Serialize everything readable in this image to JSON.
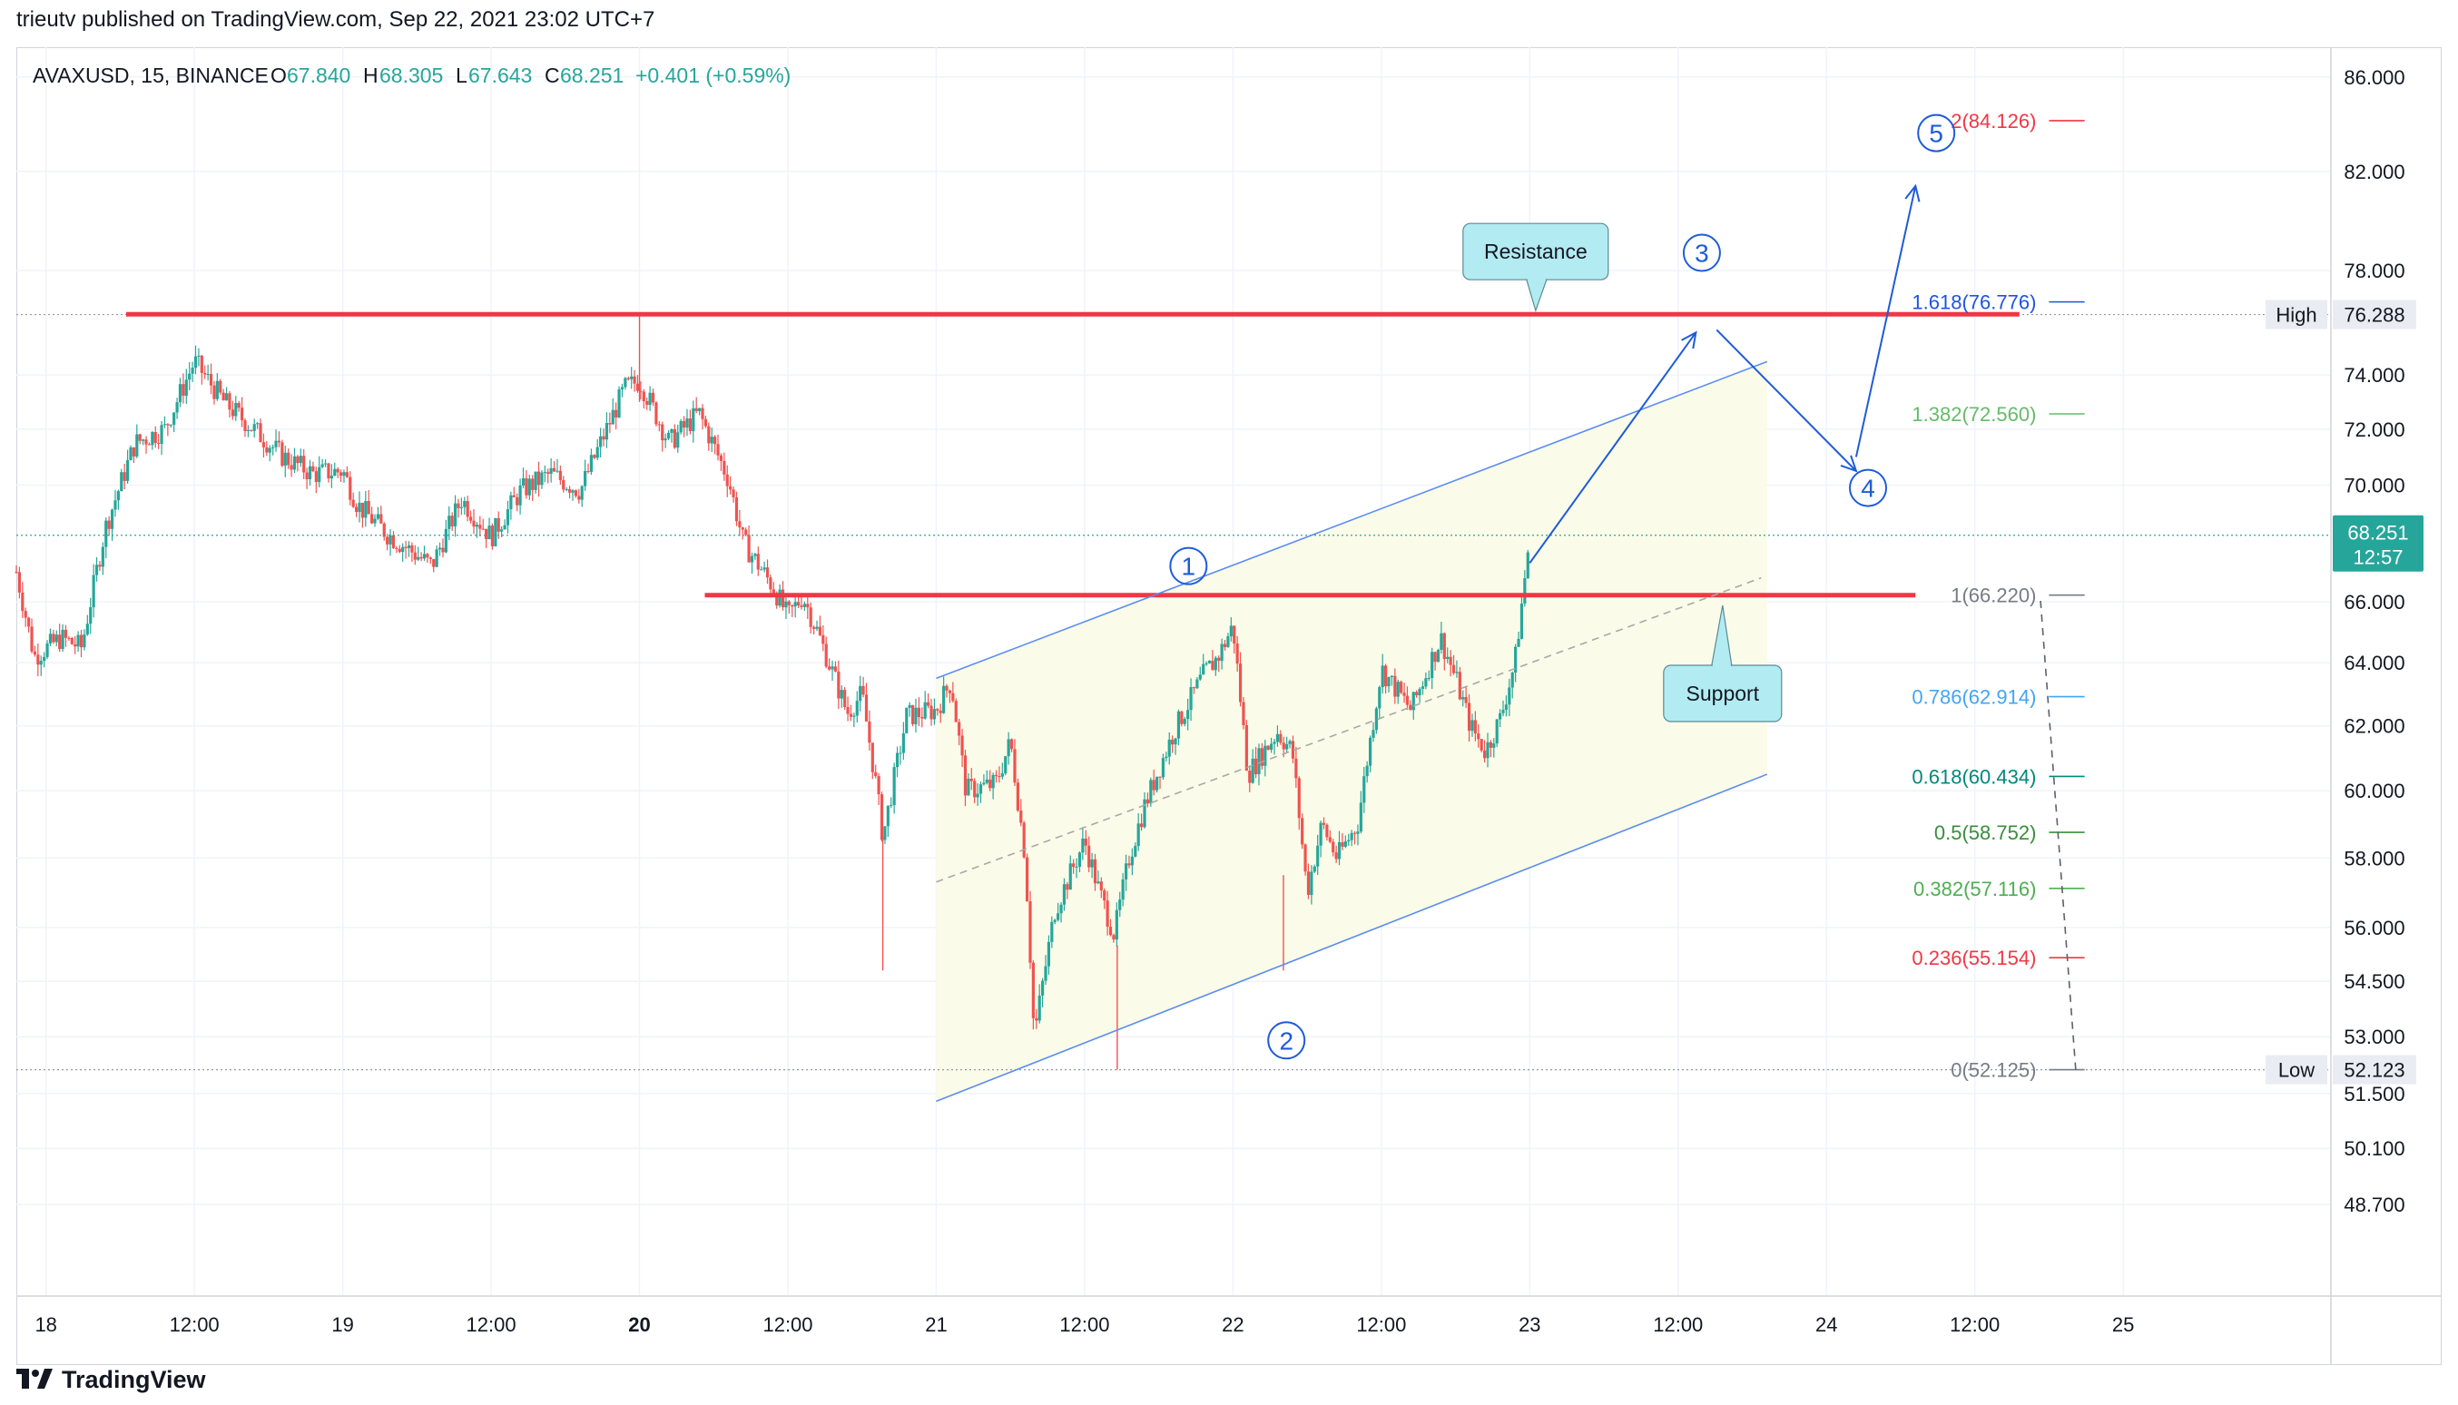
{
  "header": {
    "published_text": "trieutv published on TradingView.com, Sep 22, 2021 23:02 UTC+7"
  },
  "footer": {
    "brand": "TradingView"
  },
  "colors": {
    "up": "#26a69a",
    "down": "#ef5350",
    "red_line": "#f23645",
    "channel": "#5b8def",
    "wave": "#1e5cd8",
    "fib_236": "#f23645",
    "fib_382": "#4caf50",
    "fib_5": "#388e3c",
    "fib_618": "#00897b",
    "fib_786": "#42a5f5",
    "fib_1": "#787b86",
    "fib_1382": "#66bb6a",
    "fib_1618": "#1e53e5",
    "fib_2": "#f23645",
    "channel_fill": "#fbfbe9"
  },
  "chart_data": {
    "type": "candlestick",
    "symbol_line": {
      "symbol": "AVAXUSD, 15, BINANCE",
      "open_label": "O",
      "open": "67.840",
      "high_label": "H",
      "high": "68.305",
      "low_label": "L",
      "low": "67.643",
      "close_label": "C",
      "close": "68.251",
      "change": "+0.401 (+0.59%)"
    },
    "y_axis": {
      "scale": "log",
      "range": [
        46.5,
        87.3
      ],
      "ticks": [
        "86.000",
        "82.000",
        "78.000",
        "74.000",
        "72.000",
        "70.000",
        "66.000",
        "64.000",
        "62.000",
        "60.000",
        "58.000",
        "56.000",
        "54.500",
        "53.000",
        "51.500",
        "50.100",
        "48.700"
      ]
    },
    "x_axis": {
      "range_day": [
        17.9,
        25.7
      ],
      "ticks": [
        {
          "label": "18",
          "day": 18.0,
          "bold": false
        },
        {
          "label": "12:00",
          "day": 18.5,
          "bold": false
        },
        {
          "label": "19",
          "day": 19.0,
          "bold": false
        },
        {
          "label": "12:00",
          "day": 19.5,
          "bold": false
        },
        {
          "label": "20",
          "day": 20.0,
          "bold": true
        },
        {
          "label": "12:00",
          "day": 20.5,
          "bold": false
        },
        {
          "label": "21",
          "day": 21.0,
          "bold": false
        },
        {
          "label": "12:00",
          "day": 21.5,
          "bold": false
        },
        {
          "label": "22",
          "day": 22.0,
          "bold": false
        },
        {
          "label": "12:00",
          "day": 22.5,
          "bold": false
        },
        {
          "label": "23",
          "day": 23.0,
          "bold": false
        },
        {
          "label": "12:00",
          "day": 23.5,
          "bold": false
        },
        {
          "label": "24",
          "day": 24.0,
          "bold": false
        },
        {
          "label": "12:00",
          "day": 24.5,
          "bold": false
        },
        {
          "label": "25",
          "day": 25.0,
          "bold": false
        }
      ]
    },
    "price_path": [
      [
        17.9,
        67.0
      ],
      [
        17.96,
        64.2
      ],
      [
        18.05,
        64.8
      ],
      [
        18.12,
        64.5
      ],
      [
        18.2,
        68.5
      ],
      [
        18.3,
        71.5
      ],
      [
        18.4,
        72.0
      ],
      [
        18.5,
        74.5
      ],
      [
        18.6,
        73.0
      ],
      [
        18.7,
        72.0
      ],
      [
        18.8,
        71.0
      ],
      [
        18.9,
        70.4
      ],
      [
        19.0,
        70.5
      ],
      [
        19.05,
        69.3
      ],
      [
        19.15,
        68.3
      ],
      [
        19.3,
        67.2
      ],
      [
        19.4,
        69.5
      ],
      [
        19.5,
        68.2
      ],
      [
        19.6,
        69.8
      ],
      [
        19.7,
        70.4
      ],
      [
        19.8,
        69.8
      ],
      [
        19.95,
        73.5
      ],
      [
        20.0,
        73.8
      ],
      [
        20.1,
        71.5
      ],
      [
        20.2,
        72.6
      ],
      [
        20.3,
        70.2
      ],
      [
        20.35,
        68.0
      ],
      [
        20.45,
        66.5
      ],
      [
        20.5,
        65.5
      ],
      [
        20.55,
        66.2
      ],
      [
        20.6,
        65.0
      ],
      [
        20.7,
        62.4
      ],
      [
        20.75,
        63.0
      ],
      [
        20.8,
        60.0
      ],
      [
        20.82,
        58.6
      ],
      [
        20.9,
        62.3
      ],
      [
        21.0,
        62.5
      ],
      [
        21.05,
        63.4
      ],
      [
        21.1,
        60.0
      ],
      [
        21.2,
        60.2
      ],
      [
        21.25,
        61.5
      ],
      [
        21.3,
        58.0
      ],
      [
        21.33,
        53.0
      ],
      [
        21.4,
        56.5
      ],
      [
        21.5,
        58.5
      ],
      [
        21.55,
        57.0
      ],
      [
        21.6,
        55.8
      ],
      [
        21.65,
        58.0
      ],
      [
        21.7,
        59.5
      ],
      [
        21.8,
        61.8
      ],
      [
        21.9,
        63.6
      ],
      [
        21.95,
        64.2
      ],
      [
        22.0,
        65.2
      ],
      [
        22.05,
        60.5
      ],
      [
        22.15,
        61.8
      ],
      [
        22.2,
        61.2
      ],
      [
        22.25,
        57.0
      ],
      [
        22.3,
        59.0
      ],
      [
        22.35,
        58.0
      ],
      [
        22.42,
        59.0
      ],
      [
        22.5,
        63.8
      ],
      [
        22.6,
        62.5
      ],
      [
        22.7,
        64.8
      ],
      [
        22.75,
        63.5
      ],
      [
        22.8,
        62.0
      ],
      [
        22.85,
        61.2
      ],
      [
        22.9,
        62.2
      ],
      [
        22.95,
        64.0
      ],
      [
        22.98,
        66.5
      ],
      [
        23.0,
        68.25
      ]
    ],
    "high_low_marks": [
      {
        "label": "High",
        "value": "76.288",
        "price": 76.288
      },
      {
        "label": "Low",
        "value": "52.123",
        "price": 52.123
      }
    ],
    "current_price": {
      "value": "68.251",
      "countdown": "12:57",
      "price": 68.251
    },
    "horizontal_lines": [
      {
        "name": "resistance",
        "price": 76.3,
        "x_from": 18.27,
        "x_to": 24.65
      },
      {
        "name": "support",
        "price": 66.22,
        "x_from": 20.22,
        "x_to": 24.3
      }
    ],
    "callouts": [
      {
        "name": "resistance",
        "text": "Resistance",
        "anchor_day": 23.02,
        "anchor_price": 76.3
      },
      {
        "name": "support",
        "text": "Support",
        "anchor_day": 23.65,
        "anchor_price": 66.0
      }
    ],
    "channel": {
      "upper": [
        [
          21.0,
          63.5
        ],
        [
          23.8,
          74.5
        ]
      ],
      "middle": [
        [
          21.0,
          57.3
        ],
        [
          23.78,
          66.8
        ]
      ],
      "lower": [
        [
          21.0,
          51.3
        ],
        [
          23.8,
          60.5
        ]
      ]
    },
    "fibonacci": [
      {
        "ratio": "2",
        "value": "84.126",
        "label": "2(84.126)",
        "price": 84.126,
        "color": "#f23645"
      },
      {
        "ratio": "1.618",
        "value": "76.776",
        "label": "1.618(76.776)",
        "price": 76.776,
        "color": "#1e53e5"
      },
      {
        "ratio": "1.382",
        "value": "72.560",
        "label": "1.382(72.560)",
        "price": 72.56,
        "color": "#66bb6a"
      },
      {
        "ratio": "1",
        "value": "66.220",
        "label": "1(66.220)",
        "price": 66.22,
        "color": "#787b86"
      },
      {
        "ratio": "0.786",
        "value": "62.914",
        "label": "0.786(62.914)",
        "price": 62.914,
        "color": "#42a5f5"
      },
      {
        "ratio": "0.618",
        "value": "60.434",
        "label": "0.618(60.434)",
        "price": 60.434,
        "color": "#00897b"
      },
      {
        "ratio": "0.5",
        "value": "58.752",
        "label": "0.5(58.752)",
        "price": 58.752,
        "color": "#388e3c"
      },
      {
        "ratio": "0.382",
        "value": "57.116",
        "label": "0.382(57.116)",
        "price": 57.116,
        "color": "#4caf50"
      },
      {
        "ratio": "0.236",
        "value": "55.154",
        "label": "0.236(55.154)",
        "price": 55.154,
        "color": "#f23645"
      },
      {
        "ratio": "0",
        "value": "52.125",
        "label": "0(52.125)",
        "price": 52.125,
        "color": "#787b86"
      }
    ],
    "elliott_waves": [
      {
        "label": "1",
        "day": 21.85,
        "price": 67.2
      },
      {
        "label": "2",
        "day": 22.18,
        "price": 52.9
      },
      {
        "label": "3",
        "day": 23.58,
        "price": 78.7
      },
      {
        "label": "4",
        "day": 24.14,
        "price": 69.9
      },
      {
        "label": "5",
        "day": 24.37,
        "price": 83.6
      }
    ],
    "projection_path": [
      [
        23.0,
        67.3
      ],
      [
        23.56,
        75.6
      ],
      [
        23.63,
        75.7
      ],
      [
        24.1,
        70.5
      ],
      [
        24.1,
        71.0
      ],
      [
        24.3,
        81.4
      ]
    ]
  }
}
